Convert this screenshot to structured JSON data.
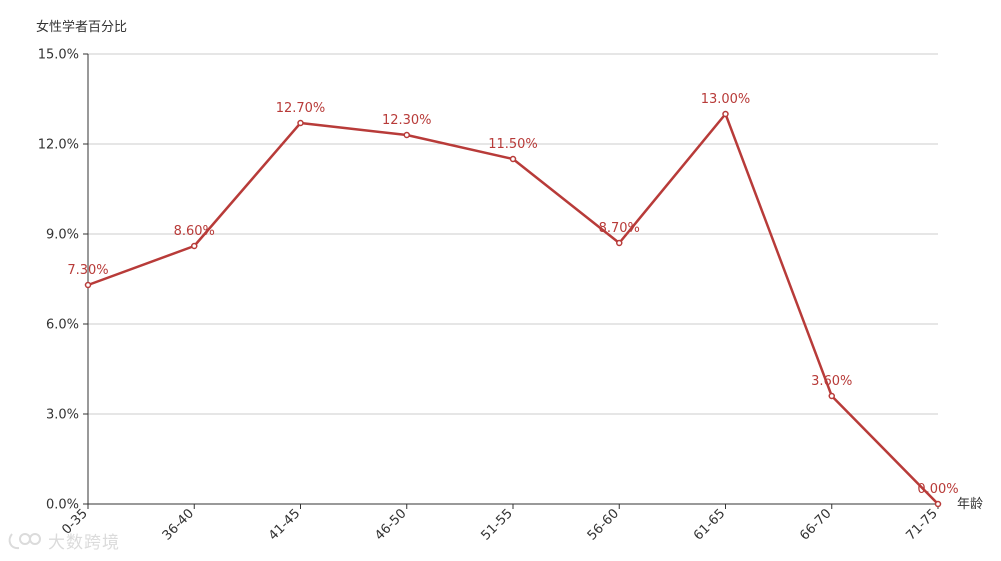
{
  "chart_data": {
    "type": "line",
    "ylabel": "女性学者百分比",
    "xlabel": "年龄",
    "categories": [
      "0-35",
      "36-40",
      "41-45",
      "46-50",
      "51-55",
      "56-60",
      "61-65",
      "66-70",
      "71-75"
    ],
    "series": [
      {
        "values": [
          7.3,
          8.6,
          12.7,
          12.3,
          11.5,
          8.7,
          13.0,
          3.6,
          0.0
        ],
        "data_labels": [
          "7.30%",
          "8.60%",
          "12.70%",
          "12.30%",
          "11.50%",
          "8.70%",
          "13.00%",
          "3.60%",
          "0.00%"
        ],
        "color": "#b83b39"
      }
    ],
    "ylim": [
      0,
      15
    ],
    "yticks": [
      "0.0%",
      "3.0%",
      "6.0%",
      "9.0%",
      "12.0%",
      "15.0%"
    ],
    "grid": true
  },
  "watermark": {
    "text": "大数跨境",
    "icon": "watermark-logo-icon"
  },
  "colors": {
    "line": "#b83b39",
    "grid": "#cccccc",
    "axis": "#333333"
  }
}
